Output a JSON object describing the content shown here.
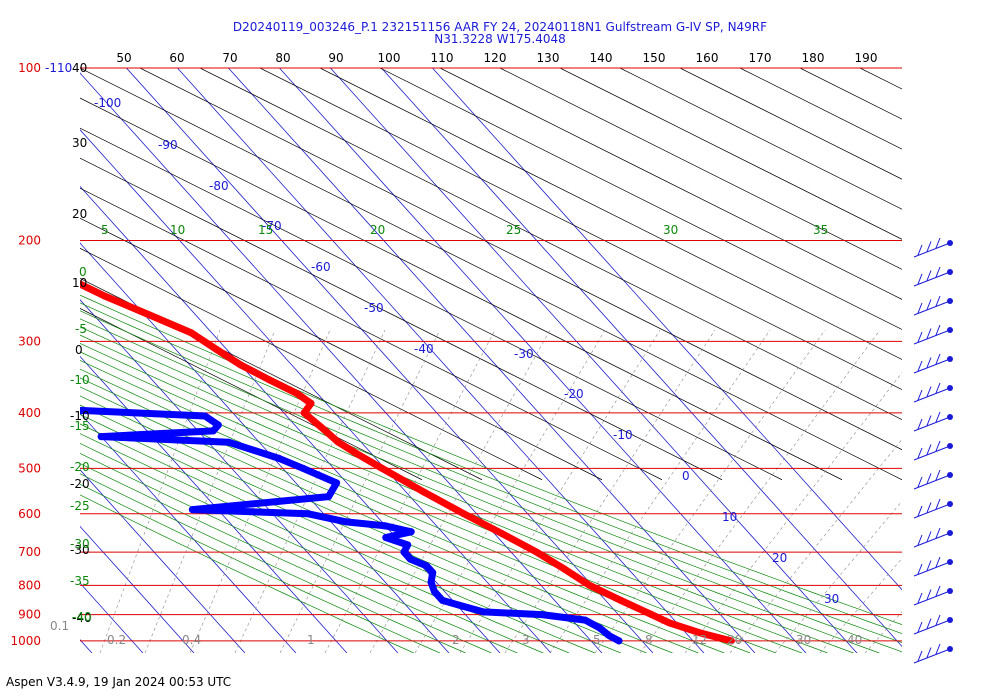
{
  "title": {
    "line1": "D20240119_003246_P.1 232151156 AAR FY 24, 20240118N1 Gulfstream G-IV SP, N49RF",
    "line2": "N31.3228 W175.4048"
  },
  "footer": "Aspen V3.4.9, 19 Jan 2024  00:53 UTC",
  "chart_data": {
    "type": "skew-t",
    "log_pressure_axis": true,
    "pressure_labels": [
      "100",
      "200",
      "300",
      "400",
      "500",
      "600",
      "700",
      "800",
      "900",
      "1000"
    ],
    "top_extra_label": "-110",
    "top_temperature_labels": [
      "50",
      "60",
      "70",
      "80",
      "90",
      "100",
      "110",
      "120",
      "130",
      "140",
      "150",
      "160",
      "170",
      "180",
      "190"
    ],
    "isotherm_labels": [
      "-100",
      "-90",
      "-80",
      "-70",
      "-60",
      "-50",
      "-40",
      "-30",
      "-20",
      "-10",
      "0",
      "10",
      "20",
      "30"
    ],
    "left_axis_labels": [
      "40",
      "30",
      "20",
      "10",
      "0",
      "-10",
      "-20",
      "-30",
      "-40"
    ],
    "dry_adiabat_labels": [
      "5",
      "10",
      "15",
      "20",
      "25",
      "30",
      "35",
      "0",
      "-5",
      "-10",
      "-15",
      "-20",
      "-25",
      "-30",
      "-35",
      "-40"
    ],
    "mixing_ratio_labels": [
      "0.1",
      "0.2",
      "0.4",
      "1",
      "2",
      "3",
      "5",
      "8",
      "12",
      "16",
      "20",
      "30",
      "40"
    ],
    "series": [
      {
        "name": "Temperature",
        "color": "#ff0000",
        "points": [
          [
            1000,
            17.5
          ],
          [
            970,
            13.0
          ],
          [
            930,
            8.5
          ],
          [
            900,
            6.5
          ],
          [
            850,
            3.0
          ],
          [
            800,
            -0.5
          ],
          [
            750,
            -2.5
          ],
          [
            700,
            -5.0
          ],
          [
            650,
            -8.5
          ],
          [
            600,
            -12.5
          ],
          [
            550,
            -16.5
          ],
          [
            500,
            -20.5
          ],
          [
            470,
            -23.0
          ],
          [
            450,
            -24.5
          ],
          [
            430,
            -25.0
          ],
          [
            400,
            -26.0
          ],
          [
            385,
            -23.0
          ],
          [
            370,
            -24.0
          ],
          [
            350,
            -27.0
          ],
          [
            330,
            -30.0
          ],
          [
            310,
            -32.0
          ],
          [
            290,
            -34.0
          ],
          [
            270,
            -39.0
          ],
          [
            250,
            -44.5
          ],
          [
            235,
            -48.0
          ],
          [
            220,
            -52.0
          ],
          [
            205,
            -55.5
          ]
        ]
      },
      {
        "name": "Dewpoint",
        "color": "#0000ff",
        "points": [
          [
            1000,
            -4.5
          ],
          [
            980,
            -5.5
          ],
          [
            950,
            -6.0
          ],
          [
            920,
            -7.5
          ],
          [
            900,
            -15.0
          ],
          [
            890,
            -26.0
          ],
          [
            870,
            -29.0
          ],
          [
            850,
            -32.0
          ],
          [
            820,
            -32.0
          ],
          [
            790,
            -31.0
          ],
          [
            760,
            -29.0
          ],
          [
            740,
            -29.0
          ],
          [
            720,
            -31.0
          ],
          [
            700,
            -31.0
          ],
          [
            680,
            -29.0
          ],
          [
            660,
            -32.0
          ],
          [
            645,
            -26.0
          ],
          [
            630,
            -30.0
          ],
          [
            620,
            -37.0
          ],
          [
            600,
            -43.0
          ],
          [
            590,
            -65.0
          ],
          [
            560,
            -36.0
          ],
          [
            530,
            -32.0
          ],
          [
            500,
            -36.0
          ],
          [
            480,
            -39.0
          ],
          [
            450,
            -46.0
          ],
          [
            440,
            -70.0
          ],
          [
            430,
            -47.0
          ],
          [
            420,
            -45.0
          ],
          [
            405,
            -46.0
          ],
          [
            395,
            -72.0
          ],
          [
            380,
            -82.0
          ],
          [
            360,
            -83.0
          ],
          [
            330,
            -81.0
          ],
          [
            300,
            -78.0
          ],
          [
            270,
            -74.0
          ],
          [
            250,
            -73.0
          ],
          [
            240,
            -74.0
          ]
        ]
      }
    ]
  }
}
